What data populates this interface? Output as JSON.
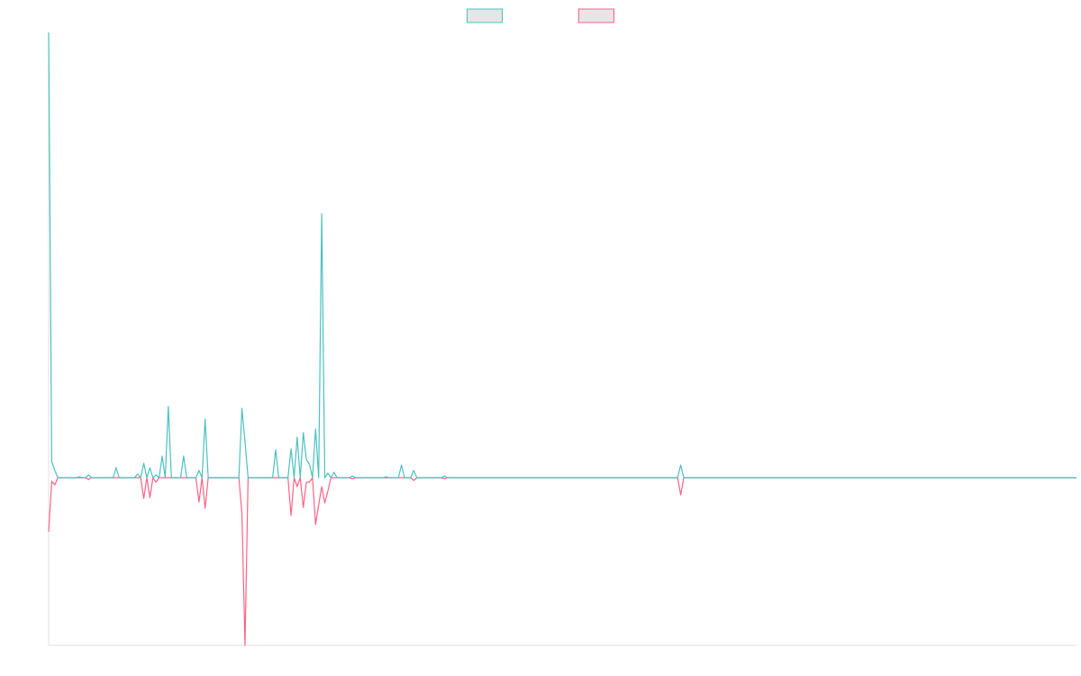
{
  "chart_data": {
    "type": "line",
    "legend": "top",
    "ylim": [
      -186,
      494
    ],
    "series": [
      {
        "color": "#4bc0c0",
        "values": [
          494,
          18,
          8,
          0,
          0,
          0,
          0,
          0,
          0,
          0,
          1,
          0,
          0,
          3,
          0,
          0,
          0,
          0,
          0,
          0,
          0,
          0,
          11,
          0,
          0,
          0,
          0,
          0,
          0,
          4,
          0,
          16,
          0,
          11,
          0,
          3,
          0,
          24,
          0,
          79,
          0,
          0,
          0,
          0,
          24,
          0,
          0,
          0,
          0,
          8,
          0,
          65,
          0,
          0,
          0,
          0,
          0,
          0,
          0,
          0,
          0,
          0,
          0,
          77,
          40,
          0,
          0,
          0,
          0,
          0,
          0,
          0,
          0,
          0,
          31,
          0,
          0,
          0,
          0,
          32,
          0,
          45,
          0,
          50,
          20,
          15,
          0,
          54,
          0,
          293,
          0,
          5,
          0,
          6,
          0,
          0,
          0,
          0,
          0,
          2,
          0,
          0,
          0,
          0,
          0,
          0,
          0,
          0,
          0,
          0,
          1,
          0,
          0,
          0,
          0,
          14,
          0,
          0,
          0,
          8,
          0,
          0,
          0,
          0,
          0,
          0,
          0,
          0,
          0,
          2,
          0,
          0,
          0,
          0,
          0,
          0,
          0,
          0,
          0,
          0,
          0,
          0,
          0,
          0,
          0,
          0,
          0,
          0,
          0,
          0,
          0,
          0,
          0,
          0,
          0,
          0,
          0,
          0,
          0,
          0,
          0,
          0,
          0,
          0,
          0,
          0,
          0,
          0,
          0,
          0,
          0,
          0,
          0,
          0,
          0,
          0,
          0,
          0,
          0,
          0,
          0,
          0,
          0,
          0,
          0,
          0,
          0,
          0,
          0,
          0,
          0,
          0,
          0,
          0,
          0,
          0,
          0,
          0,
          0,
          0,
          0,
          0,
          0,
          0,
          0,
          0,
          14,
          0,
          0,
          0,
          0,
          0,
          0,
          0,
          0,
          0,
          0,
          0,
          0,
          0,
          0,
          0,
          0,
          0,
          0,
          0,
          0,
          0,
          0,
          0,
          0,
          0,
          0,
          0,
          0,
          0,
          0,
          0,
          0,
          0,
          0,
          0,
          0,
          0,
          0,
          0,
          0,
          0,
          0,
          0,
          0,
          0,
          0,
          0,
          0,
          0,
          0,
          0,
          0,
          0,
          0,
          0,
          0,
          0,
          0,
          0,
          0,
          0,
          0,
          0,
          0,
          0,
          0,
          0,
          0,
          0,
          0,
          0,
          0,
          0,
          0,
          0,
          0,
          0,
          0,
          0,
          0,
          0,
          0,
          0,
          0,
          0,
          0,
          0,
          0,
          0,
          0,
          0,
          0,
          0,
          0,
          0,
          0,
          0,
          0,
          0,
          0,
          0,
          0,
          0,
          0,
          0,
          0,
          0,
          0,
          0,
          0,
          0,
          0,
          0,
          0,
          0,
          0,
          0,
          0,
          0,
          0,
          0,
          0,
          0,
          0,
          0,
          0,
          0,
          0,
          0
        ]
      },
      {
        "color": "#ff6384",
        "values": [
          -60,
          -4,
          -8,
          0,
          0,
          0,
          0,
          0,
          0,
          0,
          0,
          0,
          0,
          -2,
          0,
          0,
          0,
          0,
          0,
          0,
          0,
          0,
          0,
          0,
          0,
          0,
          0,
          0,
          0,
          0,
          0,
          -23,
          0,
          -22,
          0,
          -5,
          0,
          0,
          0,
          0,
          0,
          0,
          0,
          0,
          0,
          0,
          0,
          0,
          0,
          -27,
          0,
          -34,
          0,
          0,
          0,
          0,
          0,
          0,
          0,
          0,
          0,
          0,
          0,
          -40,
          -186,
          0,
          0,
          0,
          0,
          0,
          0,
          0,
          0,
          0,
          0,
          0,
          0,
          0,
          0,
          -42,
          0,
          -10,
          0,
          -33,
          -5,
          -5,
          0,
          -52,
          -30,
          -10,
          -28,
          -15,
          0,
          0,
          0,
          0,
          0,
          0,
          0,
          -1,
          0,
          0,
          0,
          0,
          0,
          0,
          0,
          0,
          0,
          0,
          0,
          0,
          0,
          0,
          0,
          0,
          0,
          0,
          0,
          -3,
          0,
          0,
          0,
          0,
          0,
          0,
          0,
          0,
          0,
          -1,
          0,
          0,
          0,
          0,
          0,
          0,
          0,
          0,
          0,
          0,
          0,
          0,
          0,
          0,
          0,
          0,
          0,
          0,
          0,
          0,
          0,
          0,
          0,
          0,
          0,
          0,
          0,
          0,
          0,
          0,
          0,
          0,
          0,
          0,
          0,
          0,
          0,
          0,
          0,
          0,
          0,
          0,
          0,
          0,
          0,
          0,
          0,
          0,
          0,
          0,
          0,
          0,
          0,
          0,
          0,
          0,
          0,
          0,
          0,
          0,
          0,
          0,
          0,
          0,
          0,
          0,
          0,
          0,
          0,
          0,
          0,
          0,
          0,
          0,
          0,
          0,
          -19,
          0,
          0,
          0,
          0,
          0,
          0,
          0,
          0,
          0,
          0,
          0,
          0,
          0,
          0,
          0,
          0,
          0,
          0,
          0,
          0,
          0,
          0,
          0,
          0,
          0,
          0,
          0,
          0,
          0,
          0,
          0,
          0,
          0,
          0,
          0,
          0,
          0,
          0,
          0,
          0,
          0,
          0,
          0,
          0,
          0,
          0,
          0,
          0,
          0,
          0,
          0,
          0,
          0,
          0,
          0,
          0,
          0,
          0,
          0,
          0,
          0,
          0,
          0,
          0,
          0,
          0,
          0,
          0,
          0,
          0,
          0,
          0,
          0,
          0,
          0,
          0,
          0,
          0,
          0,
          0,
          0,
          0,
          0,
          0,
          0,
          0,
          0,
          0,
          0,
          0,
          0,
          0,
          0,
          0,
          0,
          0,
          0,
          0,
          0,
          0,
          0,
          0,
          0,
          0,
          0,
          0,
          0,
          0,
          0,
          0,
          0,
          0,
          0,
          0,
          0,
          0,
          0,
          0,
          0,
          0,
          0,
          0,
          0,
          0,
          0,
          0,
          0,
          0,
          0
        ]
      }
    ]
  }
}
